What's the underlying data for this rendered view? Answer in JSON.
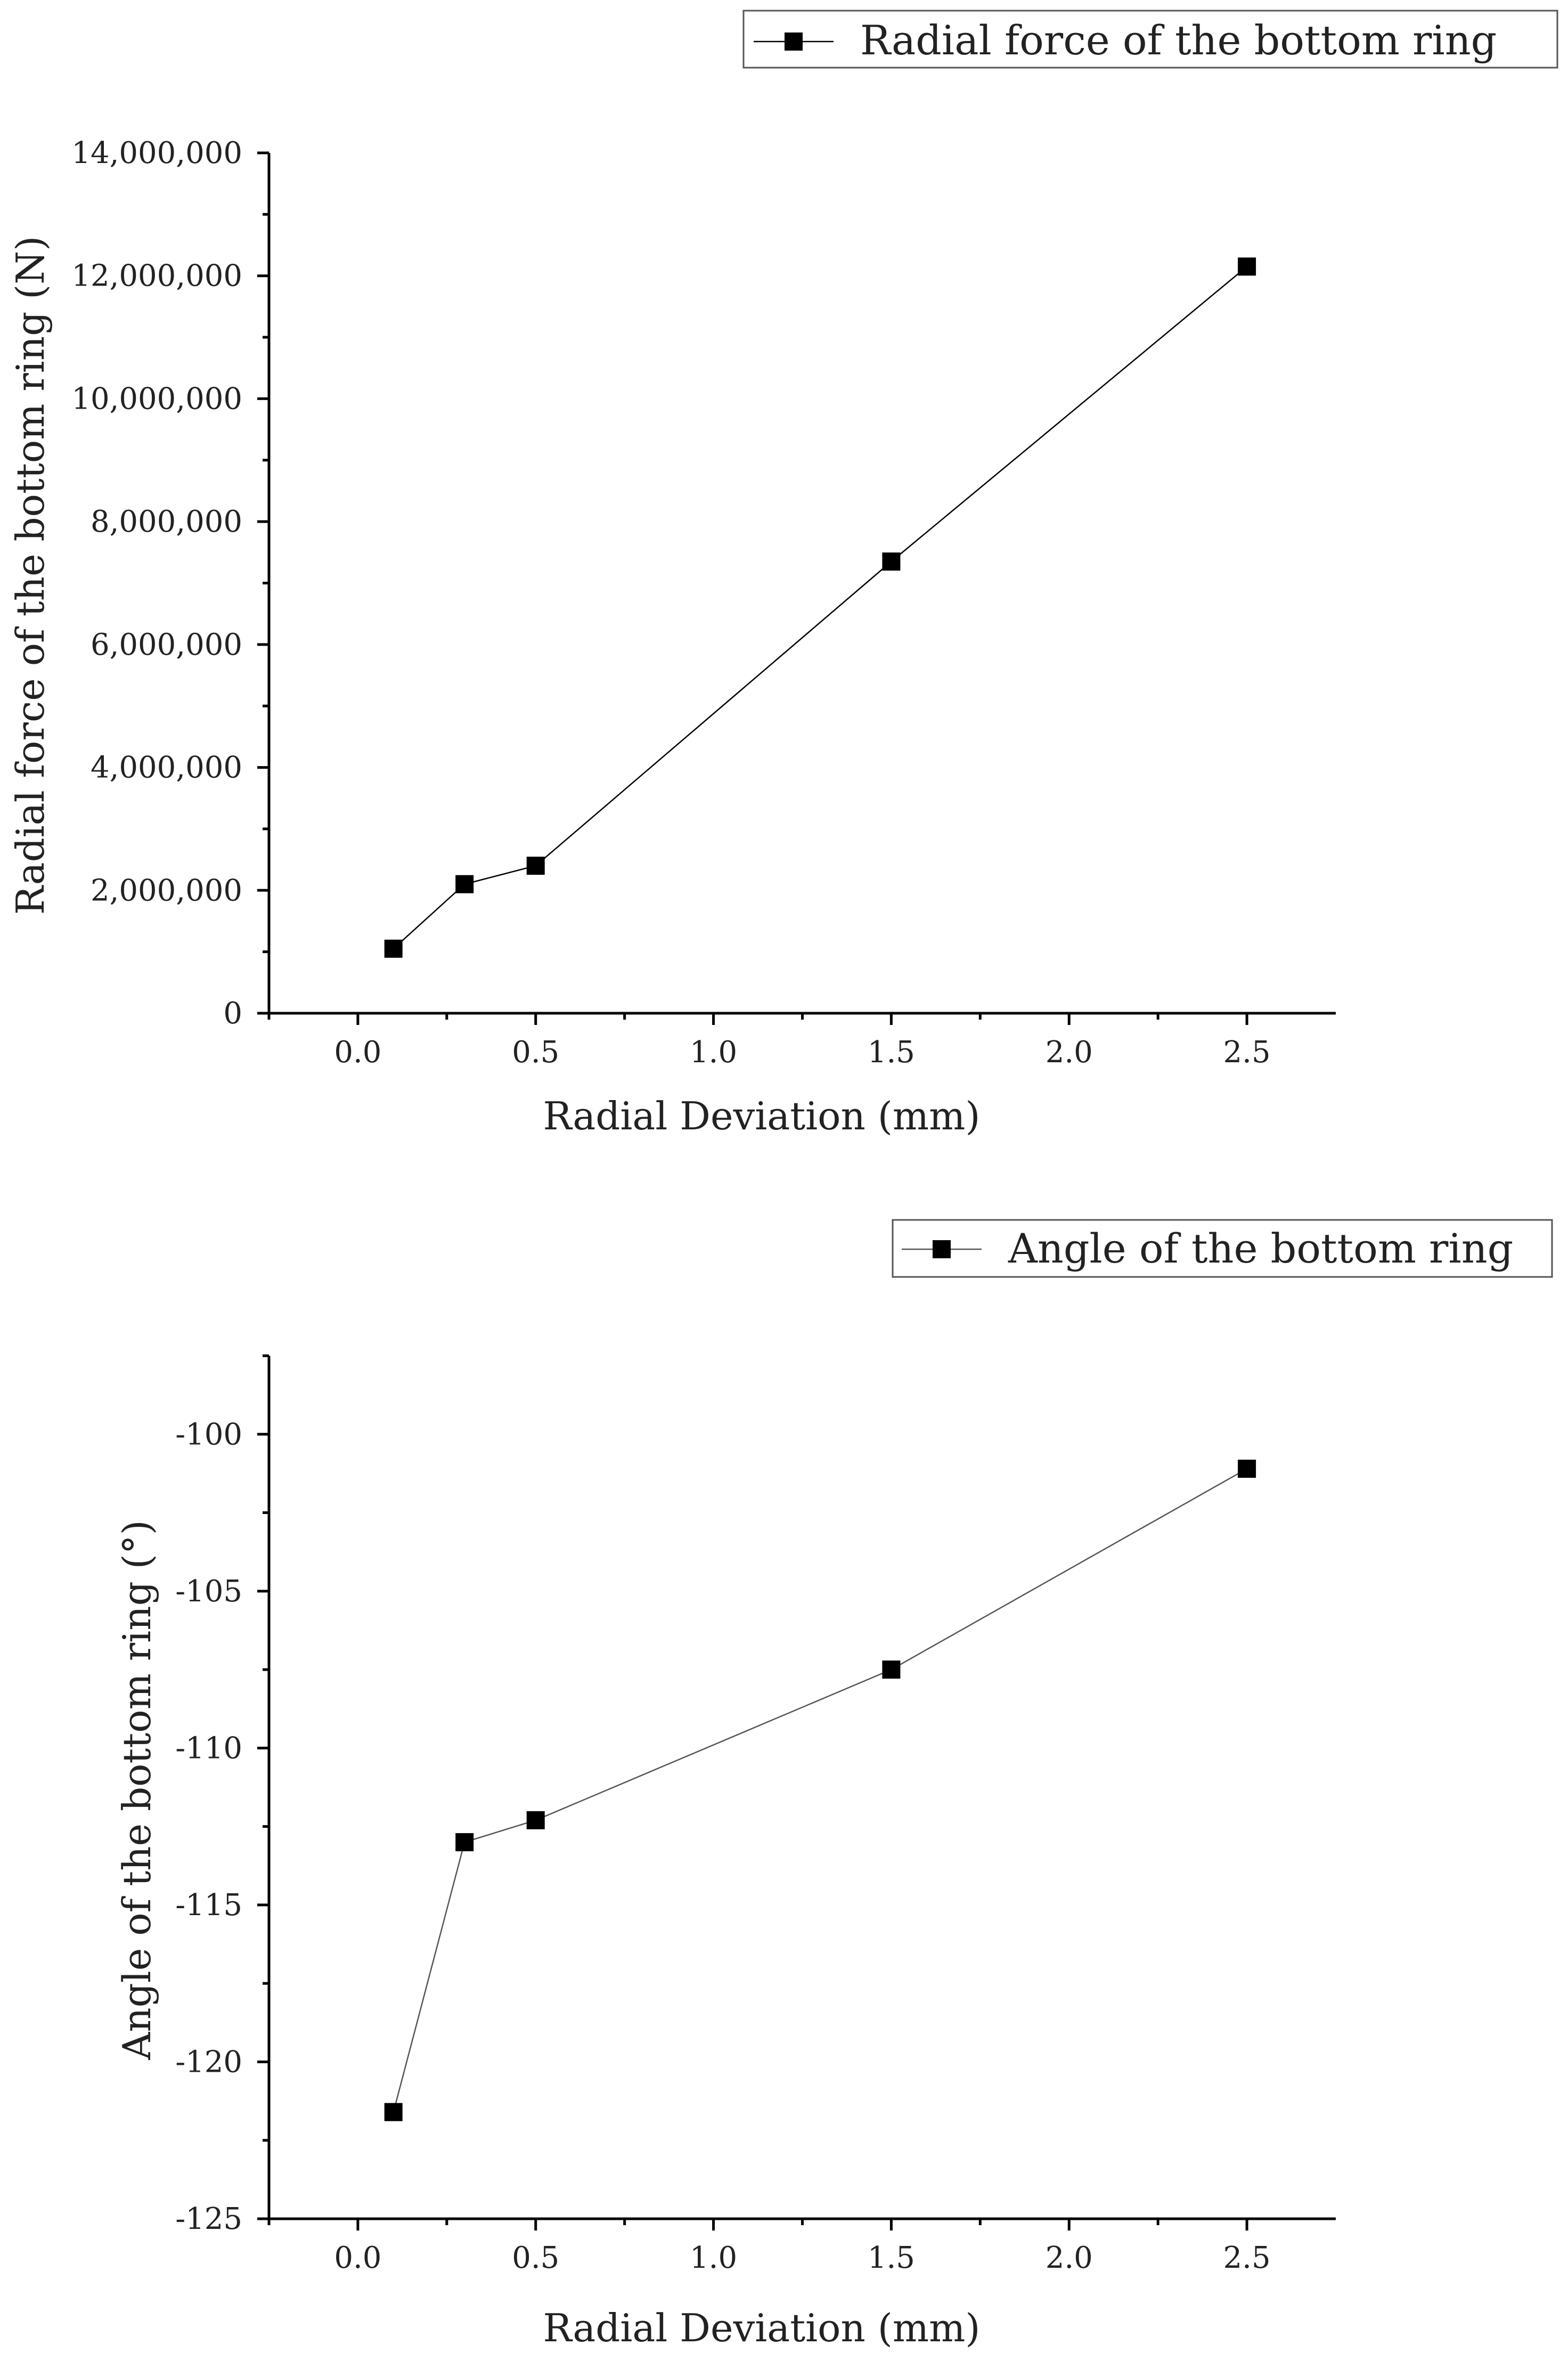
{
  "chart_data": [
    {
      "type": "line",
      "x": [
        0.1,
        0.3,
        0.5,
        1.5,
        2.5
      ],
      "series": [
        {
          "name": "Radial force of the bottom ring",
          "values": [
            1050000,
            2100000,
            2400000,
            7350000,
            12150000
          ]
        }
      ],
      "xlabel": "Radial Deviation (mm)",
      "ylabel": "Radial force of the bottom ring (N)",
      "xlim": [
        -0.25,
        2.75
      ],
      "ylim": [
        0,
        14000000
      ],
      "xticks": [
        "0.0",
        "0.5",
        "1.0",
        "1.5",
        "2.0",
        "2.5"
      ],
      "yticks": [
        "0",
        "2,000,000",
        "4,000,000",
        "6,000,000",
        "8,000,000",
        "10,000,000",
        "12,000,000",
        "14,000,000"
      ],
      "legend_position": "top-right",
      "grid": false,
      "marker": "square",
      "color": "#000000"
    },
    {
      "type": "line",
      "x": [
        0.1,
        0.3,
        0.5,
        1.5,
        2.5
      ],
      "series": [
        {
          "name": "Angle of the bottom ring",
          "values": [
            -121.6,
            -113.0,
            -112.3,
            -107.5,
            -101.1
          ]
        }
      ],
      "xlabel": "Radial Deviation (mm)",
      "ylabel": "Angle of the bottom ring (°)",
      "xlim": [
        -0.25,
        2.75
      ],
      "ylim": [
        -125,
        -97.5
      ],
      "xticks": [
        "0.0",
        "0.5",
        "1.0",
        "1.5",
        "2.0",
        "2.5"
      ],
      "yticks": [
        "-100",
        "-105",
        "-110",
        "-115",
        "-120",
        "-125"
      ],
      "legend_position": "top-right",
      "grid": false,
      "marker": "square",
      "color": "#555555"
    }
  ]
}
